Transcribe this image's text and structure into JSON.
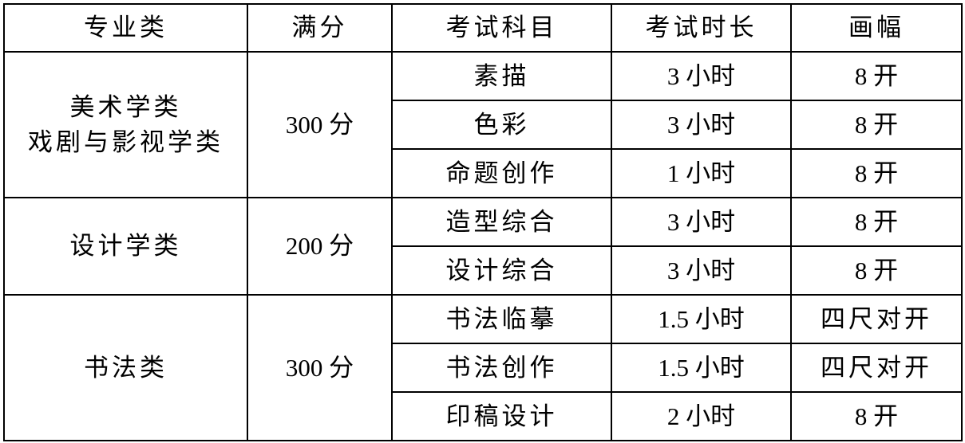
{
  "headers": [
    "专业类",
    "满分",
    "考试科目",
    "考试时长",
    "画幅"
  ],
  "groups": [
    {
      "category": [
        "美术学类",
        "戏剧与影视学类"
      ],
      "score": "300 分",
      "rows": [
        {
          "subject": "素描",
          "duration": "3 小时",
          "size": "8 开"
        },
        {
          "subject": "色彩",
          "duration": "3 小时",
          "size": "8 开"
        },
        {
          "subject": "命题创作",
          "duration": "1 小时",
          "size": "8 开"
        }
      ]
    },
    {
      "category": [
        "设计学类"
      ],
      "score": "200 分",
      "rows": [
        {
          "subject": "造型综合",
          "duration": "3 小时",
          "size": "8 开"
        },
        {
          "subject": "设计综合",
          "duration": "3 小时",
          "size": "8 开"
        }
      ]
    },
    {
      "category": [
        "书法类"
      ],
      "score": "300 分",
      "rows": [
        {
          "subject": "书法临摹",
          "duration": "1.5 小时",
          "size": "四尺对开"
        },
        {
          "subject": "书法创作",
          "duration": "1.5 小时",
          "size": "四尺对开"
        },
        {
          "subject": "印稿设计",
          "duration": "2 小时",
          "size": "8 开"
        }
      ]
    }
  ]
}
